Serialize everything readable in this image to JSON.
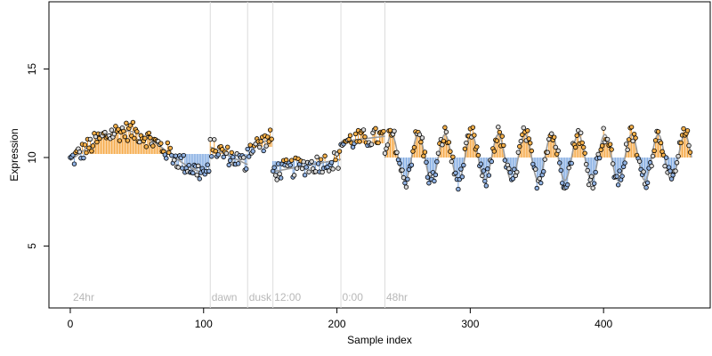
{
  "chart_data": {
    "type": "scatter",
    "xlabel": "Sample index",
    "ylabel": "Expression",
    "xlim": [
      -16,
      480
    ],
    "ylim": [
      1.5,
      18.8
    ],
    "xticks": [
      0,
      100,
      200,
      300,
      400
    ],
    "yticks": [
      5,
      10,
      15
    ],
    "xtick_labels": [
      "0",
      "100",
      "200",
      "300",
      "400"
    ],
    "ytick_labels": [
      "5",
      "10",
      "15"
    ],
    "grid": false,
    "legend": "none",
    "colors": {
      "point_fill_high": "#f5b04a",
      "point_fill_low": "#8fb0e0",
      "point_fill_neutral": "#d9d9d9",
      "point_stroke": "#000000",
      "segment_high": "#f5a33a",
      "segment_low": "#7aa6e0",
      "fit_line": "#9a9a9a",
      "divider": "#dcdcdc",
      "section_label": "#b8b8b8"
    },
    "dividers": [
      105,
      133,
      152,
      203,
      236
    ],
    "sections": [
      {
        "label": "24hr",
        "x": 2
      },
      {
        "label": "dawn",
        "x": 106
      },
      {
        "label": "dusk",
        "x": 134
      },
      {
        "label": "12:00",
        "x": 153
      },
      {
        "label": "0:00",
        "x": 204
      },
      {
        "label": "48hr",
        "x": 237
      }
    ],
    "segments": [
      {
        "x": [
          0,
          105
        ],
        "baseline": 10.2,
        "mode": "smooth",
        "amp": 1.2,
        "period": 130,
        "phase": -0.4,
        "offset": 10.3
      },
      {
        "x": [
          105,
          133
        ],
        "baseline": 10.2,
        "mode": "trend",
        "start": 10.6,
        "end": 9.6
      },
      {
        "x": [
          133,
          152
        ],
        "baseline": 10.6,
        "mode": "trend",
        "start": 10.5,
        "end": 11.1
      },
      {
        "x": [
          152,
          203
        ],
        "baseline": 9.8,
        "mode": "trend",
        "start": 9.2,
        "end": 9.9
      },
      {
        "x": [
          203,
          236
        ],
        "baseline": 10.8,
        "mode": "trend",
        "start": 10.9,
        "end": 11.2
      },
      {
        "x": [
          236,
          466
        ],
        "baseline": 10.0,
        "mode": "osc",
        "amp": 1.3,
        "period": 20,
        "phase": 0.0,
        "offset": 10.0
      }
    ]
  }
}
